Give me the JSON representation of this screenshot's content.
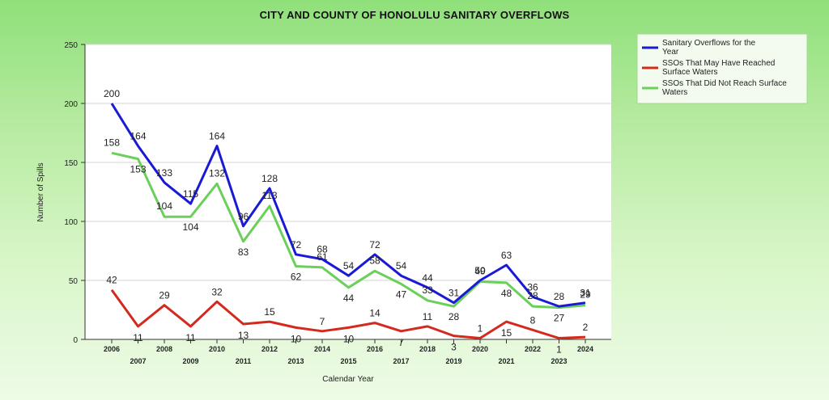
{
  "chart_data": {
    "type": "line",
    "title": "CITY AND COUNTY OF HONOLULU SANITARY OVERFLOWS",
    "xlabel": "Calendar Year",
    "ylabel": "Number of Spills",
    "ylim": [
      0,
      250
    ],
    "yticks": [
      "0",
      "50",
      "100",
      "150",
      "200",
      "250"
    ],
    "x": [
      "2006",
      "2007",
      "2008",
      "2009",
      "2010",
      "2011",
      "2012",
      "2013",
      "2014",
      "2015",
      "2016",
      "2017",
      "2018",
      "2019",
      "2020",
      "2021",
      "2022",
      "2023",
      "2024"
    ],
    "series": [
      {
        "name": "Sanitary Overflows for the Year",
        "legend_lines": [
          "Sanitary Overflows for the",
          "Year"
        ],
        "color": "#1a1ad6",
        "values": [
          200,
          164,
          133,
          115,
          164,
          96,
          128,
          72,
          68,
          54,
          72,
          54,
          44,
          31,
          50,
          63,
          36,
          28,
          31
        ]
      },
      {
        "name": "SSOs That May Have Reached Surface Waters",
        "legend_lines": [
          "SSOs That May Have Reached",
          "Surface Waters"
        ],
        "color": "#d42a1e",
        "values": [
          42,
          11,
          29,
          11,
          32,
          13,
          15,
          10,
          7,
          10,
          14,
          7,
          11,
          3,
          1,
          15,
          8,
          1,
          2
        ]
      },
      {
        "name": "SSOs That Did Not Reach Surface Waters",
        "legend_lines": [
          "SSOs That Did Not Reach Surface",
          "Waters"
        ],
        "color": "#6ad05a",
        "values": [
          158,
          153,
          104,
          104,
          132,
          83,
          113,
          62,
          61,
          44,
          58,
          47,
          33,
          28,
          49,
          48,
          28,
          27,
          29
        ]
      }
    ]
  }
}
